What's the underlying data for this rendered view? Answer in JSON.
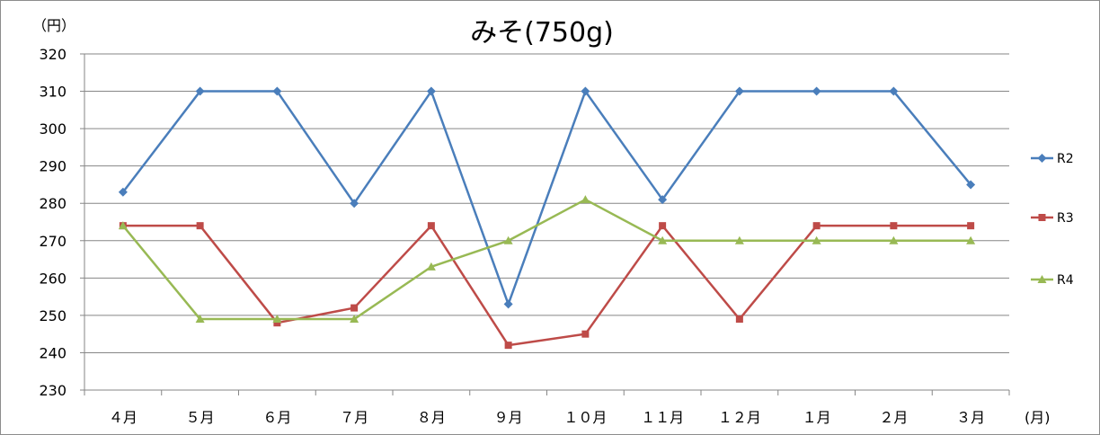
{
  "chart_data": {
    "type": "line",
    "title": "みそ(750g)",
    "ylabel": "（円）",
    "xlabel": "(月)",
    "ylim": [
      230,
      320
    ],
    "yticks": [
      320,
      310,
      300,
      290,
      280,
      270,
      260,
      250,
      240,
      230
    ],
    "grid": true,
    "legend_position": "right",
    "categories": [
      "４月",
      "５月",
      "６月",
      "７月",
      "８月",
      "９月",
      "１０月",
      "１１月",
      "１２月",
      "１月",
      "２月",
      "３月"
    ],
    "series": [
      {
        "name": "R2",
        "color": "#4a7ebb",
        "marker": "diamond",
        "values": [
          283,
          310,
          310,
          280,
          310,
          253,
          310,
          281,
          310,
          310,
          310,
          285
        ]
      },
      {
        "name": "R3",
        "color": "#be4b48",
        "marker": "square",
        "values": [
          274,
          274,
          248,
          252,
          274,
          242,
          245,
          274,
          249,
          274,
          274,
          274
        ]
      },
      {
        "name": "R4",
        "color": "#98b954",
        "marker": "triangle",
        "values": [
          274,
          249,
          249,
          249,
          263,
          270,
          281,
          270,
          270,
          270,
          270,
          270
        ]
      }
    ]
  }
}
